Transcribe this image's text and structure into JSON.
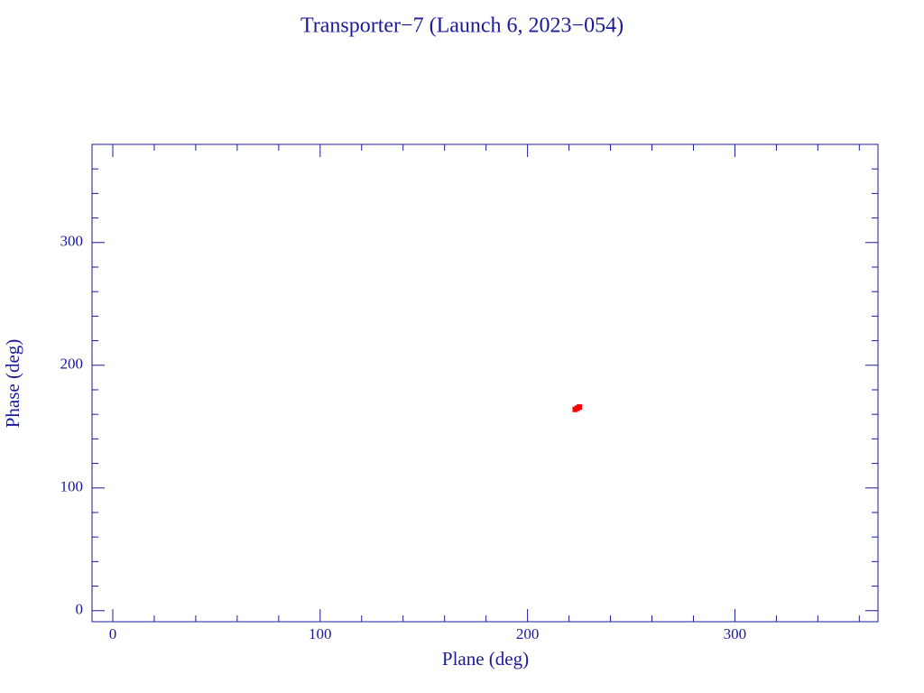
{
  "chart_data": {
    "type": "scatter",
    "title": "Transporter−7 (Launch 6, 2023−054)",
    "x_label": "Plane (deg)",
    "y_label": "Phase (deg)",
    "x": [
      223,
      224,
      225
    ],
    "series": [
      {
        "color": "#ff0000",
        "values": [
          164,
          165,
          166
        ]
      }
    ],
    "xlim": [
      -10,
      369
    ],
    "ylim": [
      -9,
      380
    ],
    "xticks": [
      0,
      100,
      200,
      300
    ],
    "yticks": [
      0,
      100,
      200,
      300
    ],
    "xminorticks": [
      20,
      40,
      60,
      80,
      120,
      140,
      160,
      180,
      220,
      240,
      260,
      280,
      320,
      340,
      360
    ],
    "yminorticks": [
      20,
      40,
      60,
      80,
      120,
      140,
      160,
      180,
      220,
      240,
      260,
      280,
      320,
      340,
      360
    ],
    "axis_color": "#1a1a9a"
  }
}
